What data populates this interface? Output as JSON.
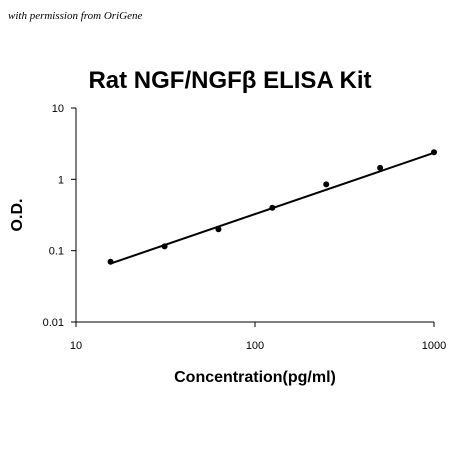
{
  "header": {
    "permission_note": "with permission from OriGene"
  },
  "chart_data": {
    "type": "scatter",
    "title": "Rat NGF/NGFβ ELISA Kit",
    "xlabel": "Concentration(pg/ml)",
    "ylabel": "O.D.",
    "x_scale": "log",
    "y_scale": "log",
    "xlim": [
      10,
      1000
    ],
    "ylim": [
      0.01,
      10
    ],
    "x_ticks": [
      10,
      100,
      1000
    ],
    "x_tick_labels": [
      "10",
      "100",
      "1000"
    ],
    "y_ticks": [
      0.01,
      0.1,
      1,
      10
    ],
    "y_tick_labels": [
      "0.01",
      "0.1",
      "1",
      "10"
    ],
    "grid": false,
    "legend": "none",
    "points": [
      {
        "x": 15.6,
        "y": 0.07
      },
      {
        "x": 31.25,
        "y": 0.115
      },
      {
        "x": 62.5,
        "y": 0.2
      },
      {
        "x": 125,
        "y": 0.4
      },
      {
        "x": 250,
        "y": 0.85
      },
      {
        "x": 500,
        "y": 1.45
      },
      {
        "x": 1000,
        "y": 2.4
      }
    ],
    "fit_line": {
      "x": [
        15.6,
        1000
      ],
      "y": [
        0.066,
        2.35
      ]
    },
    "colors": {
      "marker": "#000000",
      "line": "#000000",
      "axis": "#000000"
    }
  }
}
